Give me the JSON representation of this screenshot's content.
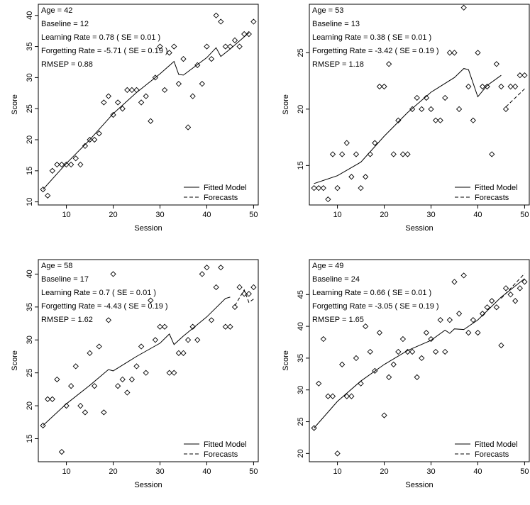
{
  "chart_data": [
    {
      "type": "scatter",
      "id": "p1",
      "title": "",
      "xlabel": "Session",
      "ylabel": "Score",
      "xlim": [
        4,
        51
      ],
      "ylim": [
        9.5,
        41.8
      ],
      "xticks": [
        10,
        20,
        30,
        40,
        50
      ],
      "yticks": [
        10,
        15,
        20,
        25,
        30,
        35,
        40
      ],
      "annotations": [
        "Age = 42",
        "Baseline = 12",
        "Learning Rate = 0.78  ( SE = 0.01 )",
        "Forgetting Rate = -5.71  ( SE = 0.19 )",
        "RMSEP = 0.88"
      ],
      "legend": {
        "position": "bottom-right",
        "fitted": "Fitted Model",
        "forecast": "Forecasts"
      },
      "points": [
        [
          5,
          12
        ],
        [
          6,
          11
        ],
        [
          7,
          15
        ],
        [
          8,
          16
        ],
        [
          9,
          16
        ],
        [
          10,
          16
        ],
        [
          11,
          16
        ],
        [
          12,
          17
        ],
        [
          13,
          16
        ],
        [
          14,
          19
        ],
        [
          15,
          20
        ],
        [
          16,
          20
        ],
        [
          17,
          21
        ],
        [
          18,
          26
        ],
        [
          19,
          27
        ],
        [
          20,
          24
        ],
        [
          21,
          26
        ],
        [
          22,
          25
        ],
        [
          23,
          28
        ],
        [
          24,
          28
        ],
        [
          25,
          28
        ],
        [
          26,
          26
        ],
        [
          27,
          27
        ],
        [
          28,
          23
        ],
        [
          29,
          30
        ],
        [
          30,
          35
        ],
        [
          31,
          28
        ],
        [
          32,
          34
        ],
        [
          33,
          35
        ],
        [
          34,
          29
        ],
        [
          35,
          33
        ],
        [
          36,
          22
        ],
        [
          37,
          27
        ],
        [
          38,
          32
        ],
        [
          39,
          29
        ],
        [
          40,
          35
        ],
        [
          41,
          33
        ],
        [
          42,
          40
        ],
        [
          43,
          39
        ],
        [
          44,
          35
        ],
        [
          45,
          35
        ],
        [
          46,
          36
        ],
        [
          47,
          35
        ],
        [
          48,
          37
        ],
        [
          49,
          37
        ],
        [
          50,
          39
        ]
      ],
      "fitted": [
        [
          5,
          12
        ],
        [
          10,
          16.2
        ],
        [
          15,
          20
        ],
        [
          20,
          24.2
        ],
        [
          25,
          27.6
        ],
        [
          30,
          30.6
        ],
        [
          33,
          32.6
        ],
        [
          34,
          30.5
        ],
        [
          35,
          30.4
        ],
        [
          40,
          33.2
        ],
        [
          42,
          34.8
        ],
        [
          43,
          33.4
        ],
        [
          45,
          34.6
        ],
        [
          49,
          37.2
        ]
      ],
      "forecast": []
    },
    {
      "type": "scatter",
      "id": "p2",
      "title": "",
      "xlabel": "Session",
      "ylabel": "Score",
      "xlim": [
        4,
        51
      ],
      "ylim": [
        11.5,
        29.3
      ],
      "xticks": [
        10,
        20,
        30,
        40,
        50
      ],
      "yticks": [
        15,
        20,
        25
      ],
      "annotations": [
        "Age = 53",
        "Baseline = 13",
        "Learning Rate = 0.38  ( SE = 0.01 )",
        "Forgetting Rate = -3.42  ( SE = 0.19 )",
        "RMSEP = 1.18"
      ],
      "legend": {
        "position": "bottom-right",
        "fitted": "Fitted Model",
        "forecast": "Forecasts"
      },
      "points": [
        [
          5,
          13
        ],
        [
          6,
          13
        ],
        [
          7,
          13
        ],
        [
          8,
          12
        ],
        [
          9,
          16
        ],
        [
          10,
          13
        ],
        [
          11,
          16
        ],
        [
          12,
          17
        ],
        [
          13,
          14
        ],
        [
          14,
          16
        ],
        [
          15,
          13
        ],
        [
          16,
          14
        ],
        [
          17,
          16
        ],
        [
          18,
          17
        ],
        [
          19,
          22
        ],
        [
          20,
          22
        ],
        [
          21,
          24
        ],
        [
          22,
          16
        ],
        [
          23,
          19
        ],
        [
          24,
          16
        ],
        [
          25,
          16
        ],
        [
          26,
          20
        ],
        [
          27,
          21
        ],
        [
          28,
          20
        ],
        [
          29,
          21
        ],
        [
          30,
          20
        ],
        [
          31,
          19
        ],
        [
          32,
          19
        ],
        [
          33,
          21
        ],
        [
          34,
          25
        ],
        [
          35,
          25
        ],
        [
          36,
          20
        ],
        [
          37,
          29
        ],
        [
          38,
          22
        ],
        [
          39,
          19
        ],
        [
          40,
          25
        ],
        [
          41,
          22
        ],
        [
          42,
          22
        ],
        [
          43,
          16
        ],
        [
          44,
          24
        ],
        [
          45,
          22
        ],
        [
          46,
          20
        ],
        [
          47,
          22
        ],
        [
          48,
          22
        ],
        [
          49,
          23
        ],
        [
          50,
          23
        ]
      ],
      "fitted": [
        [
          5,
          13.4
        ],
        [
          10,
          14.1
        ],
        [
          15,
          15.3
        ],
        [
          20,
          17.6
        ],
        [
          25,
          19.7
        ],
        [
          30,
          21.5
        ],
        [
          35,
          22.8
        ],
        [
          37,
          23.6
        ],
        [
          38,
          23.5
        ],
        [
          40,
          21.1
        ],
        [
          42,
          22.1
        ],
        [
          45,
          23
        ]
      ],
      "forecast": [
        [
          46,
          20.2
        ],
        [
          50,
          21.8
        ]
      ]
    },
    {
      "type": "scatter",
      "id": "p3",
      "title": "",
      "xlabel": "Session",
      "ylabel": "Score",
      "xlim": [
        4,
        51
      ],
      "ylim": [
        11.5,
        42.2
      ],
      "xticks": [
        10,
        20,
        30,
        40,
        50
      ],
      "yticks": [
        15,
        20,
        25,
        30,
        35,
        40
      ],
      "annotations": [
        "Age = 58",
        "Baseline = 17",
        "Learning Rate = 0.7  ( SE = 0.01 )",
        "Forgetting Rate = -4.43  ( SE = 0.19 )",
        "RMSEP = 1.62"
      ],
      "legend": {
        "position": "bottom-right",
        "fitted": "Fitted Model",
        "forecast": "Forecasts"
      },
      "points": [
        [
          5,
          17
        ],
        [
          6,
          21
        ],
        [
          7,
          21
        ],
        [
          8,
          24
        ],
        [
          9,
          13
        ],
        [
          10,
          20
        ],
        [
          11,
          23
        ],
        [
          12,
          26
        ],
        [
          13,
          20
        ],
        [
          14,
          19
        ],
        [
          15,
          28
        ],
        [
          16,
          23
        ],
        [
          17,
          29
        ],
        [
          18,
          19
        ],
        [
          19,
          33
        ],
        [
          20,
          40
        ],
        [
          21,
          23
        ],
        [
          22,
          24
        ],
        [
          23,
          22
        ],
        [
          24,
          24
        ],
        [
          25,
          26
        ],
        [
          26,
          29
        ],
        [
          27,
          25
        ],
        [
          28,
          36
        ],
        [
          29,
          30
        ],
        [
          30,
          32
        ],
        [
          31,
          32
        ],
        [
          32,
          25
        ],
        [
          33,
          25
        ],
        [
          34,
          28
        ],
        [
          35,
          28
        ],
        [
          36,
          30
        ],
        [
          37,
          32
        ],
        [
          38,
          30
        ],
        [
          39,
          40
        ],
        [
          40,
          41
        ],
        [
          41,
          33
        ],
        [
          42,
          38
        ],
        [
          43,
          41
        ],
        [
          44,
          32
        ],
        [
          45,
          32
        ],
        [
          46,
          35
        ],
        [
          47,
          38
        ],
        [
          48,
          37
        ],
        [
          49,
          37
        ],
        [
          50,
          38
        ]
      ],
      "fitted": [
        [
          5,
          17
        ],
        [
          10,
          20.3
        ],
        [
          15,
          23.1
        ],
        [
          19,
          25.5
        ],
        [
          20,
          25.3
        ],
        [
          25,
          27.5
        ],
        [
          30,
          29.5
        ],
        [
          32,
          30.9
        ],
        [
          33,
          29.3
        ],
        [
          35,
          30.6
        ],
        [
          40,
          33.5
        ],
        [
          44,
          36.3
        ],
        [
          45,
          36.5
        ]
      ],
      "forecast": [
        [
          46,
          35.2
        ],
        [
          47,
          36.4
        ],
        [
          48,
          37.6
        ],
        [
          49,
          35.7
        ],
        [
          50,
          36.2
        ]
      ]
    },
    {
      "type": "scatter",
      "id": "p4",
      "title": "",
      "xlabel": "Session",
      "ylabel": "Score",
      "xlim": [
        4,
        51
      ],
      "ylim": [
        18.7,
        50.5
      ],
      "xticks": [
        10,
        20,
        30,
        40,
        50
      ],
      "yticks": [
        20,
        25,
        30,
        35,
        40,
        45
      ],
      "annotations": [
        "Age = 49",
        "Baseline = 24",
        "Learning Rate = 0.66  ( SE = 0.01 )",
        "Forgetting Rate = -3.05  ( SE = 0.19 )",
        "RMSEP = 1.65"
      ],
      "legend": {
        "position": "bottom-right",
        "fitted": "Fitted Model",
        "forecast": "Forecasts"
      },
      "points": [
        [
          5,
          24
        ],
        [
          6,
          31
        ],
        [
          7,
          38
        ],
        [
          8,
          29
        ],
        [
          9,
          29
        ],
        [
          10,
          20
        ],
        [
          11,
          34
        ],
        [
          12,
          29
        ],
        [
          13,
          29
        ],
        [
          14,
          35
        ],
        [
          15,
          31
        ],
        [
          16,
          40
        ],
        [
          17,
          36
        ],
        [
          18,
          33
        ],
        [
          19,
          39
        ],
        [
          20,
          26
        ],
        [
          21,
          32
        ],
        [
          22,
          34
        ],
        [
          23,
          36
        ],
        [
          24,
          38
        ],
        [
          25,
          36
        ],
        [
          26,
          36
        ],
        [
          27,
          32
        ],
        [
          28,
          35
        ],
        [
          29,
          39
        ],
        [
          30,
          38
        ],
        [
          31,
          36
        ],
        [
          32,
          41
        ],
        [
          33,
          36
        ],
        [
          34,
          41
        ],
        [
          35,
          47
        ],
        [
          36,
          42
        ],
        [
          37,
          48
        ],
        [
          38,
          39
        ],
        [
          39,
          41
        ],
        [
          40,
          39
        ],
        [
          41,
          42
        ],
        [
          42,
          43
        ],
        [
          43,
          44
        ],
        [
          44,
          43
        ],
        [
          45,
          37
        ],
        [
          46,
          46
        ],
        [
          47,
          45
        ],
        [
          48,
          44
        ],
        [
          49,
          46
        ],
        [
          50,
          47
        ]
      ],
      "fitted": [
        [
          5,
          24
        ],
        [
          10,
          28.2
        ],
        [
          15,
          31.4
        ],
        [
          20,
          34
        ],
        [
          25,
          36.2
        ],
        [
          30,
          37.8
        ],
        [
          33,
          39.4
        ],
        [
          34,
          38.9
        ],
        [
          35,
          39.6
        ],
        [
          37,
          39.5
        ],
        [
          40,
          41
        ],
        [
          45,
          44.6
        ],
        [
          50,
          47.5
        ]
      ],
      "forecast": [
        [
          45,
          44.4
        ],
        [
          50,
          48.3
        ]
      ]
    }
  ]
}
